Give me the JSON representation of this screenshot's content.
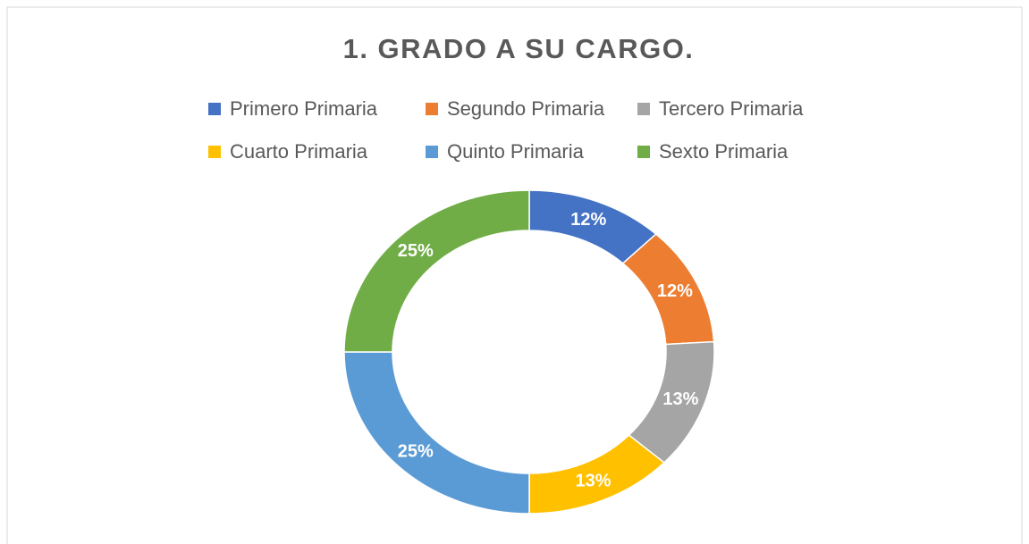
{
  "chart_data": {
    "type": "donut",
    "title": "1. GRADO A SU CARGO.",
    "categories": [
      "Primero Primaria",
      "Segundo Primaria",
      "Tercero Primaria",
      "Cuarto Primaria",
      "Quinto Primaria",
      "Sexto Primaria"
    ],
    "values": [
      12,
      12,
      13,
      13,
      25,
      25
    ],
    "value_labels": [
      "12%",
      "12%",
      "13%",
      "13%",
      "25%",
      "25%"
    ],
    "colors": [
      "#4472c4",
      "#ed7d31",
      "#a5a5a5",
      "#ffc000",
      "#5b9bd5",
      "#70ad47"
    ],
    "legend": "top"
  }
}
